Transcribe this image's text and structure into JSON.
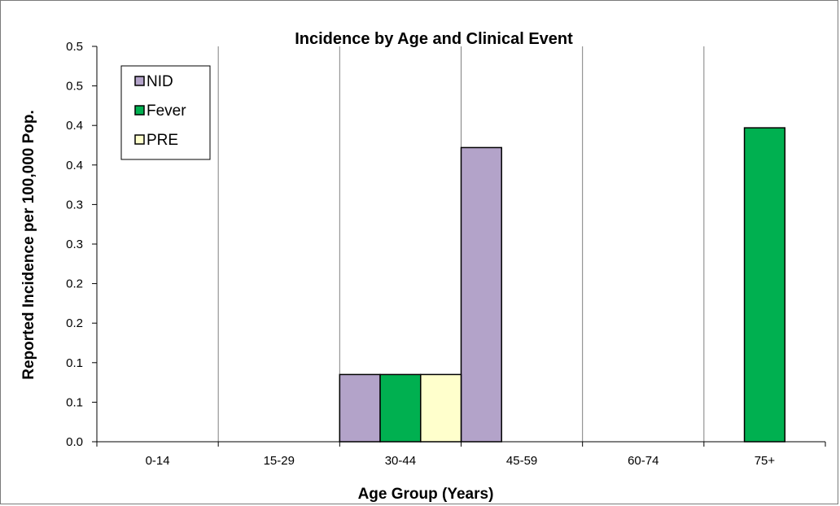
{
  "chart_data": {
    "type": "bar",
    "title": "Incidence by Age and Clinical Event",
    "xlabel": "Age Group (Years)",
    "ylabel": "Reported Incidence per 100,000 Pop.",
    "categories": [
      "0-14",
      "15-29",
      "30-44",
      "45-59",
      "60-74",
      "75+"
    ],
    "y_tick_labels": [
      "0.0",
      "0.1",
      "0.1",
      "0.2",
      "0.2",
      "0.3",
      "0.3",
      "0.4",
      "0.4",
      "0.5",
      "0.5"
    ],
    "ylim": [
      0,
      0.5
    ],
    "series": [
      {
        "name": "NID",
        "color": "#b3a3c9",
        "values": [
          0,
          0,
          0.085,
          0.372,
          0,
          0
        ]
      },
      {
        "name": "Fever",
        "color": "#00b050",
        "values": [
          0,
          0,
          0.085,
          0,
          0,
          0.397
        ]
      },
      {
        "name": "PRE",
        "color": "#ffffcc",
        "values": [
          0,
          0,
          0.085,
          0,
          0,
          0
        ]
      }
    ],
    "grid": "vertical category separators",
    "legend": "top-left"
  }
}
